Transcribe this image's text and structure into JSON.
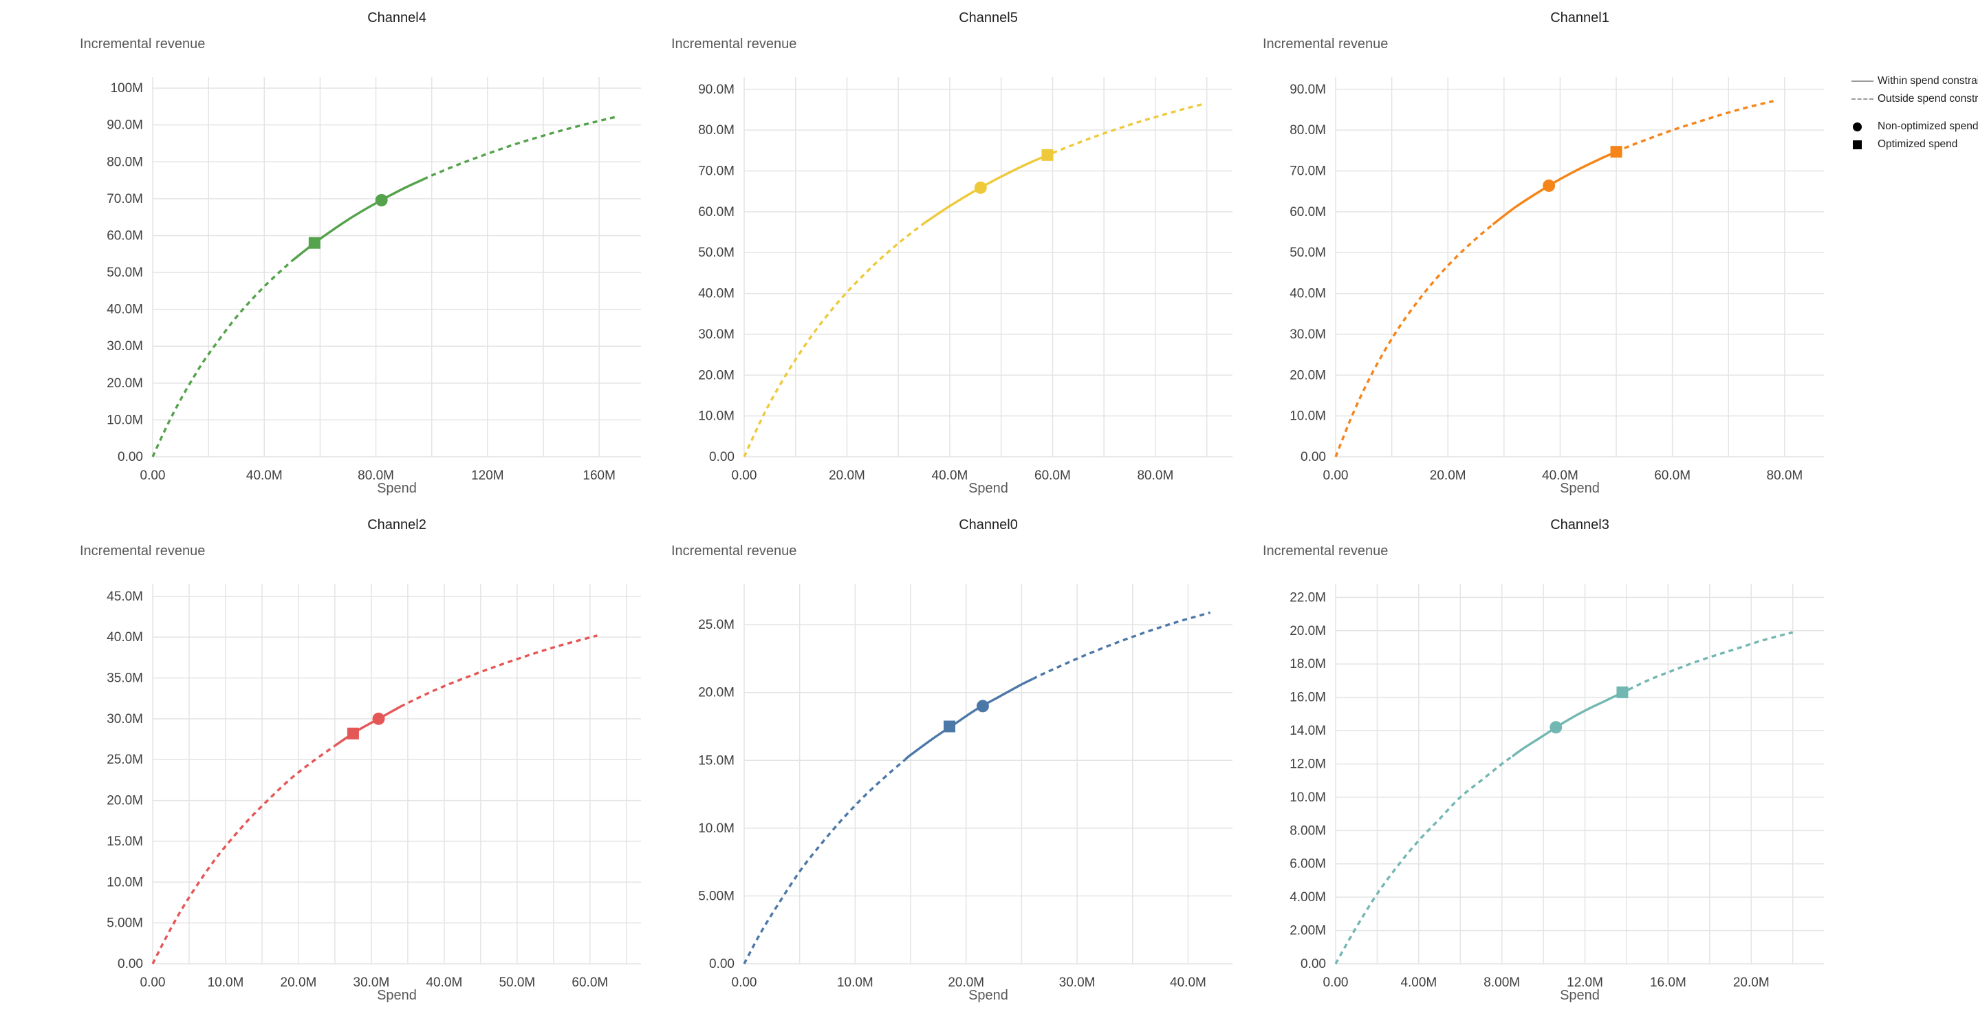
{
  "legend": {
    "items": [
      {
        "symbol": "solid-line",
        "label": "Within spend constraint"
      },
      {
        "symbol": "dashed-line",
        "label": "Outside spend constraint"
      },
      {
        "symbol": "filled-circle",
        "label": "Non-optimized spend"
      },
      {
        "symbol": "filled-square",
        "label": "Optimized spend"
      }
    ]
  },
  "chart_data": [
    {
      "type": "line",
      "title": "Channel4",
      "color": "#54a24b",
      "xlabel": "Spend",
      "ylabel": "Incremental revenue",
      "unit": "M",
      "xlim": [
        0,
        175
      ],
      "ylim": [
        0,
        103
      ],
      "x_grid_step": 20,
      "x_ticks": [
        {
          "v": 0,
          "label": "0.00"
        },
        {
          "v": 40,
          "label": "40.0M"
        },
        {
          "v": 80,
          "label": "80.0M"
        },
        {
          "v": 120,
          "label": "120M"
        },
        {
          "v": 160,
          "label": "160M"
        }
      ],
      "y_ticks": [
        {
          "v": 0,
          "label": "0.00"
        },
        {
          "v": 10,
          "label": "10.0M"
        },
        {
          "v": 20,
          "label": "20.0M"
        },
        {
          "v": 30,
          "label": "30.0M"
        },
        {
          "v": 40,
          "label": "40.0M"
        },
        {
          "v": 50,
          "label": "50.0M"
        },
        {
          "v": 60,
          "label": "60.0M"
        },
        {
          "v": 70,
          "label": "70.0M"
        },
        {
          "v": 80,
          "label": "80.0M"
        },
        {
          "v": 90,
          "label": "90.0M"
        },
        {
          "v": 100,
          "label": "100M"
        }
      ],
      "curve_x": [
        0,
        5,
        10,
        15,
        20,
        30,
        40,
        50,
        60,
        70,
        80,
        90,
        100,
        110,
        120,
        130,
        140,
        150,
        160,
        166
      ],
      "curve_y": [
        0,
        8.2,
        15.5,
        22.0,
        27.8,
        37.9,
        46.2,
        53.2,
        59.1,
        64.3,
        68.8,
        72.8,
        76.3,
        79.4,
        82.2,
        84.8,
        87.1,
        89.2,
        91.1,
        92.2
      ],
      "solid_range": [
        50,
        97
      ],
      "markers": {
        "optimized": {
          "x": 58,
          "y": 58.0
        },
        "non_optimized": {
          "x": 82,
          "y": 69.6
        }
      }
    },
    {
      "type": "line",
      "title": "Channel5",
      "color": "#eeca3b",
      "xlabel": "Spend",
      "ylabel": "Incremental revenue",
      "unit": "M",
      "xlim": [
        0,
        95
      ],
      "ylim": [
        0,
        93
      ],
      "x_grid_step": 10,
      "x_ticks": [
        {
          "v": 0,
          "label": "0.00"
        },
        {
          "v": 20,
          "label": "20.0M"
        },
        {
          "v": 40,
          "label": "40.0M"
        },
        {
          "v": 60,
          "label": "60.0M"
        },
        {
          "v": 80,
          "label": "80.0M"
        }
      ],
      "y_ticks": [
        {
          "v": 0,
          "label": "0.00"
        },
        {
          "v": 10,
          "label": "10.0M"
        },
        {
          "v": 20,
          "label": "20.0M"
        },
        {
          "v": 30,
          "label": "30.0M"
        },
        {
          "v": 40,
          "label": "40.0M"
        },
        {
          "v": 50,
          "label": "50.0M"
        },
        {
          "v": 60,
          "label": "60.0M"
        },
        {
          "v": 70,
          "label": "70.0M"
        },
        {
          "v": 80,
          "label": "80.0M"
        },
        {
          "v": 90,
          "label": "90.0M"
        }
      ],
      "curve_x": [
        0,
        4,
        8,
        12,
        16,
        20,
        25,
        30,
        35,
        40,
        45,
        50,
        55,
        60,
        65,
        70,
        75,
        80,
        85,
        89
      ],
      "curve_y": [
        0,
        10.8,
        19.8,
        27.6,
        34.4,
        40.3,
        46.7,
        52.3,
        57.2,
        61.4,
        65.2,
        68.6,
        71.7,
        74.4,
        76.9,
        79.2,
        81.3,
        83.2,
        85.0,
        86.3
      ],
      "solid_range": [
        35,
        60
      ],
      "markers": {
        "non_optimized": {
          "x": 46,
          "y": 65.9
        },
        "optimized": {
          "x": 59,
          "y": 73.9
        }
      }
    },
    {
      "type": "line",
      "title": "Channel1",
      "color": "#f58518",
      "xlabel": "Spend",
      "ylabel": "Incremental revenue",
      "unit": "M",
      "xlim": [
        0,
        87
      ],
      "ylim": [
        0,
        93
      ],
      "x_grid_step": 10,
      "x_ticks": [
        {
          "v": 0,
          "label": "0.00"
        },
        {
          "v": 20,
          "label": "20.0M"
        },
        {
          "v": 40,
          "label": "40.0M"
        },
        {
          "v": 60,
          "label": "60.0M"
        },
        {
          "v": 80,
          "label": "80.0M"
        }
      ],
      "y_ticks": [
        {
          "v": 0,
          "label": "0.00"
        },
        {
          "v": 10,
          "label": "10.0M"
        },
        {
          "v": 20,
          "label": "20.0M"
        },
        {
          "v": 30,
          "label": "30.0M"
        },
        {
          "v": 40,
          "label": "40.0M"
        },
        {
          "v": 50,
          "label": "50.0M"
        },
        {
          "v": 60,
          "label": "60.0M"
        },
        {
          "v": 70,
          "label": "70.0M"
        },
        {
          "v": 80,
          "label": "80.0M"
        },
        {
          "v": 90,
          "label": "90.0M"
        }
      ],
      "curve_x": [
        0,
        3,
        6,
        9,
        12,
        16,
        20,
        24,
        28,
        32,
        36,
        40,
        44,
        48,
        52,
        56,
        60,
        65,
        70,
        74,
        78
      ],
      "curve_y": [
        0,
        10.3,
        19.1,
        26.6,
        33.1,
        40.5,
        46.8,
        52.2,
        56.9,
        61.1,
        64.7,
        68.0,
        70.9,
        73.5,
        75.9,
        78.0,
        80.0,
        82.2,
        84.3,
        85.8,
        87.1
      ],
      "solid_range": [
        28,
        50
      ],
      "markers": {
        "non_optimized": {
          "x": 38,
          "y": 66.4
        },
        "optimized": {
          "x": 50,
          "y": 74.7
        }
      }
    },
    {
      "type": "line",
      "title": "Channel2",
      "color": "#e45756",
      "xlabel": "Spend",
      "ylabel": "Incremental revenue",
      "unit": "M",
      "xlim": [
        0,
        67
      ],
      "ylim": [
        0,
        46.5
      ],
      "x_grid_step": 5,
      "x_ticks": [
        {
          "v": 0,
          "label": "0.00"
        },
        {
          "v": 10,
          "label": "10.0M"
        },
        {
          "v": 20,
          "label": "20.0M"
        },
        {
          "v": 30,
          "label": "30.0M"
        },
        {
          "v": 40,
          "label": "40.0M"
        },
        {
          "v": 50,
          "label": "50.0M"
        },
        {
          "v": 60,
          "label": "60.0M"
        }
      ],
      "y_ticks": [
        {
          "v": 0,
          "label": "0.00"
        },
        {
          "v": 5,
          "label": "5.00M"
        },
        {
          "v": 10,
          "label": "10.0M"
        },
        {
          "v": 15,
          "label": "15.0M"
        },
        {
          "v": 20,
          "label": "20.0M"
        },
        {
          "v": 25,
          "label": "25.0M"
        },
        {
          "v": 30,
          "label": "30.0M"
        },
        {
          "v": 35,
          "label": "35.0M"
        },
        {
          "v": 40,
          "label": "40.0M"
        },
        {
          "v": 45,
          "label": "45.0M"
        }
      ],
      "curve_x": [
        0,
        2,
        4,
        6,
        8,
        10,
        13,
        16,
        19,
        22,
        25,
        28,
        31,
        34,
        37,
        40,
        44,
        48,
        52,
        56,
        61
      ],
      "curve_y": [
        0,
        3.5,
        6.7,
        9.5,
        12.1,
        14.4,
        17.5,
        20.2,
        22.7,
        24.8,
        26.7,
        28.5,
        30.0,
        31.5,
        32.8,
        34.0,
        35.4,
        36.7,
        37.9,
        39.0,
        40.2
      ],
      "solid_range": [
        25,
        34
      ],
      "markers": {
        "optimized": {
          "x": 27.5,
          "y": 28.2
        },
        "non_optimized": {
          "x": 31,
          "y": 30.0
        }
      }
    },
    {
      "type": "line",
      "title": "Channel0",
      "color": "#4c78a8",
      "xlabel": "Spend",
      "ylabel": "Incremental revenue",
      "unit": "M",
      "xlim": [
        0,
        44
      ],
      "ylim": [
        0,
        28
      ],
      "x_grid_step": 5,
      "x_ticks": [
        {
          "v": 0,
          "label": "0.00"
        },
        {
          "v": 10,
          "label": "10.0M"
        },
        {
          "v": 20,
          "label": "20.0M"
        },
        {
          "v": 30,
          "label": "30.0M"
        },
        {
          "v": 40,
          "label": "40.0M"
        }
      ],
      "y_ticks": [
        {
          "v": 0,
          "label": "0.00"
        },
        {
          "v": 5,
          "label": "5.00M"
        },
        {
          "v": 10,
          "label": "10.0M"
        },
        {
          "v": 15,
          "label": "15.0M"
        },
        {
          "v": 20,
          "label": "20.0M"
        },
        {
          "v": 25,
          "label": "25.0M"
        }
      ],
      "curve_x": [
        0,
        1.5,
        3,
        5,
        7,
        9,
        11,
        13,
        15,
        17,
        19,
        21,
        23,
        25,
        27,
        30,
        33,
        36,
        39,
        42
      ],
      "curve_y": [
        0,
        2.3,
        4.3,
        6.8,
        8.9,
        10.8,
        12.5,
        14.0,
        15.4,
        16.6,
        17.7,
        18.8,
        19.7,
        20.6,
        21.4,
        22.5,
        23.5,
        24.4,
        25.2,
        25.9
      ],
      "solid_range": [
        14.5,
        26
      ],
      "markers": {
        "optimized": {
          "x": 18.5,
          "y": 17.5
        },
        "non_optimized": {
          "x": 21.5,
          "y": 19.0
        }
      }
    },
    {
      "type": "line",
      "title": "Channel3",
      "color": "#72b7b2",
      "xlabel": "Spend",
      "ylabel": "Incremental revenue",
      "unit": "M",
      "xlim": [
        0,
        23.5
      ],
      "ylim": [
        0,
        22.8
      ],
      "x_grid_step": 2,
      "x_ticks": [
        {
          "v": 0,
          "label": "0.00"
        },
        {
          "v": 4,
          "label": "4.00M"
        },
        {
          "v": 8,
          "label": "8.00M"
        },
        {
          "v": 12,
          "label": "12.0M"
        },
        {
          "v": 16,
          "label": "16.0M"
        },
        {
          "v": 20,
          "label": "20.0M"
        }
      ],
      "y_ticks": [
        {
          "v": 0,
          "label": "0.00"
        },
        {
          "v": 2,
          "label": "2.00M"
        },
        {
          "v": 4,
          "label": "4.00M"
        },
        {
          "v": 6,
          "label": "6.00M"
        },
        {
          "v": 8,
          "label": "8.00M"
        },
        {
          "v": 10,
          "label": "10.0M"
        },
        {
          "v": 12,
          "label": "12.0M"
        },
        {
          "v": 14,
          "label": "14.0M"
        },
        {
          "v": 16,
          "label": "16.0M"
        },
        {
          "v": 18,
          "label": "18.0M"
        },
        {
          "v": 20,
          "label": "20.0M"
        },
        {
          "v": 22,
          "label": "22.0M"
        }
      ],
      "curve_x": [
        0,
        1,
        2,
        3,
        4,
        5,
        6,
        7,
        8,
        9,
        10,
        11,
        12,
        13,
        14,
        15,
        16,
        17.5,
        19,
        20.5,
        22
      ],
      "curve_y": [
        0,
        2.2,
        4.2,
        5.9,
        7.4,
        8.7,
        10.0,
        11.0,
        12.0,
        12.9,
        13.7,
        14.5,
        15.2,
        15.8,
        16.4,
        17.0,
        17.5,
        18.2,
        18.8,
        19.4,
        19.9
      ],
      "solid_range": [
        8.5,
        14.1
      ],
      "markers": {
        "non_optimized": {
          "x": 10.6,
          "y": 14.2
        },
        "optimized": {
          "x": 13.8,
          "y": 16.3
        }
      }
    }
  ]
}
